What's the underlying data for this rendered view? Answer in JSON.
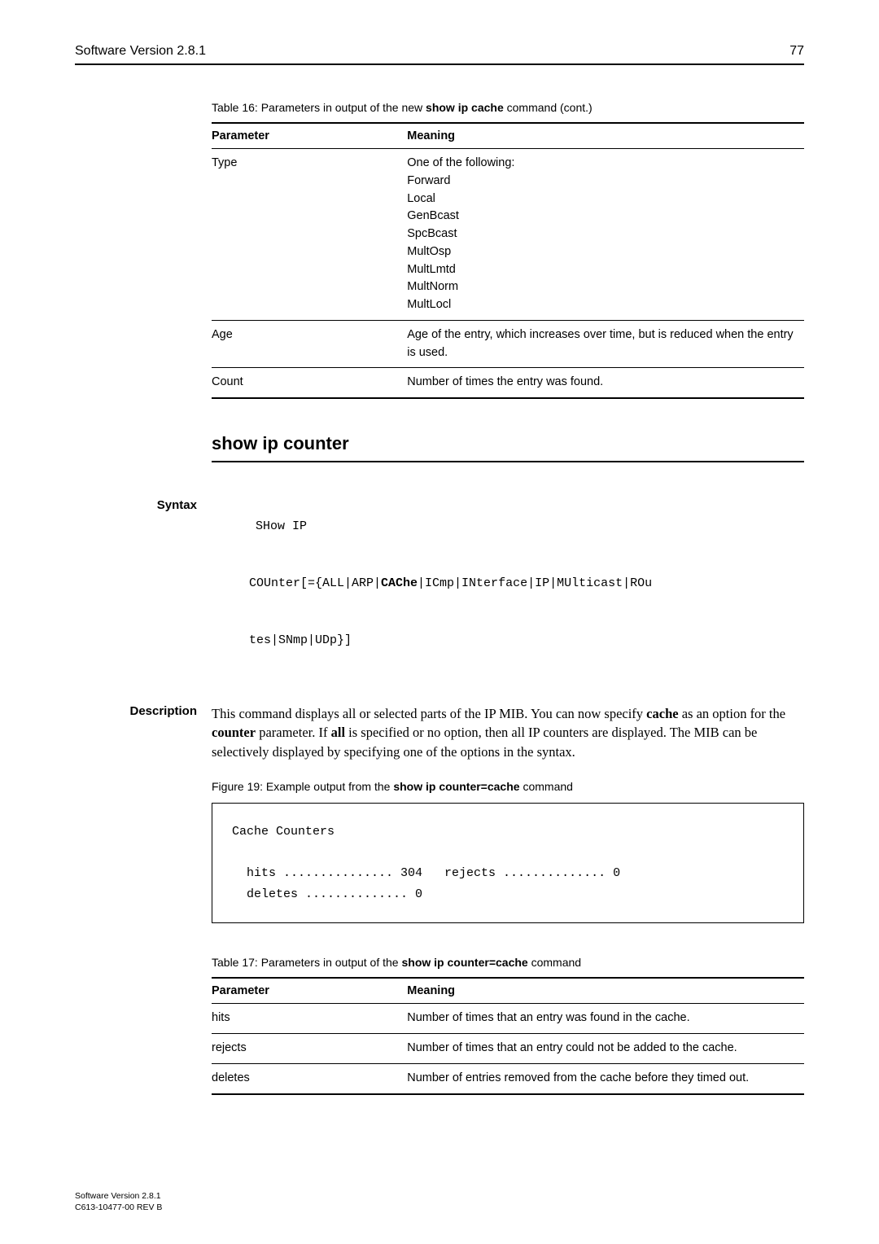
{
  "header": {
    "title": "Software Version 2.8.1",
    "page": "77"
  },
  "table16": {
    "caption_prefix": "Table 16: Parameters in output of the new ",
    "caption_bold": "show ip cache",
    "caption_suffix": " command (cont.)",
    "columns": [
      "Parameter",
      "Meaning"
    ],
    "rows": [
      {
        "param": "Type",
        "meaning": "One of the following:\nForward\nLocal\nGenBcast\nSpcBcast\nMultOsp\nMultLmtd\nMultNorm\nMultLocl"
      },
      {
        "param": "Age",
        "meaning": "Age of the entry, which increases over time, but is reduced when the entry is used."
      },
      {
        "param": "Count",
        "meaning": "Number of times the entry was found."
      }
    ]
  },
  "section": {
    "heading": "show ip counter"
  },
  "syntax": {
    "label": "Syntax",
    "line1": "SHow IP",
    "indent_pre": "COUnter[={ALL|ARP|",
    "indent_bold": "CAChe",
    "indent_post": "|ICmp|INterface|IP|MUlticast|ROu",
    "indent_line2": "tes|SNmp|UDp}]"
  },
  "description": {
    "label": "Description",
    "body_parts": [
      "This command displays all or selected parts of the IP MIB. You can now specify ",
      "cache",
      " as an option for the ",
      "counter",
      " parameter. If ",
      "all",
      " is specified or no option, then all IP counters are displayed. The MIB can be selectively displayed by specifying one of the options in the syntax."
    ]
  },
  "figure19": {
    "caption_prefix": "Figure 19: Example output from the ",
    "caption_bold": "show ip counter=cache",
    "caption_suffix": " command",
    "lines": [
      "Cache Counters",
      "",
      "  hits ............... 304   rejects .............. 0",
      "  deletes .............. 0"
    ]
  },
  "table17": {
    "caption_prefix": "Table 17: Parameters in output of the ",
    "caption_bold": "show ip counter=cache",
    "caption_suffix": " command",
    "columns": [
      "Parameter",
      "Meaning"
    ],
    "rows": [
      {
        "param": "hits",
        "meaning": "Number of times that an entry was found in the cache."
      },
      {
        "param": "rejects",
        "meaning": "Number of times that an entry could not be added to the cache."
      },
      {
        "param": "deletes",
        "meaning": "Number of entries removed from the cache before they timed out."
      }
    ]
  },
  "footer": {
    "line1": "Software Version 2.8.1",
    "line2": "C613-10477-00 REV B"
  }
}
